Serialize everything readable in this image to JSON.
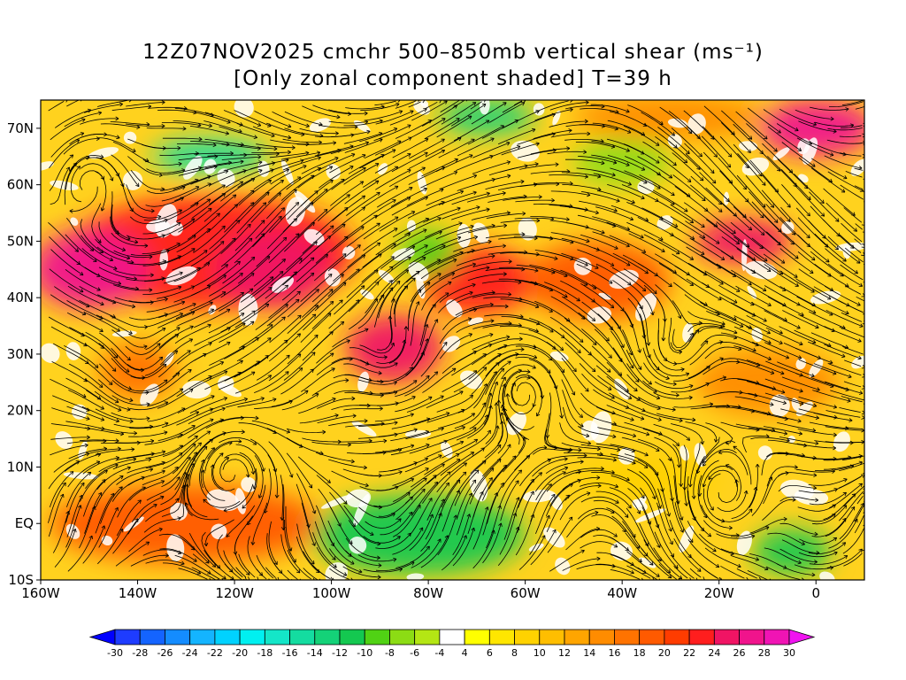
{
  "title": {
    "line1": "12Z07NOV2025 cmchr 500–850mb vertical shear (ms⁻¹)",
    "line2": "[Only zonal component shaded] T=39 h"
  },
  "map": {
    "lon_range": [
      -160,
      10
    ],
    "lat_range": [
      -10,
      75
    ],
    "x_ticks": [
      {
        "lon": -160,
        "label": "160W"
      },
      {
        "lon": -140,
        "label": "140W"
      },
      {
        "lon": -120,
        "label": "120W"
      },
      {
        "lon": -100,
        "label": "100W"
      },
      {
        "lon": -80,
        "label": "80W"
      },
      {
        "lon": -60,
        "label": "60W"
      },
      {
        "lon": -40,
        "label": "40W"
      },
      {
        "lon": -20,
        "label": "20W"
      },
      {
        "lon": 0,
        "label": "0"
      }
    ],
    "y_ticks": [
      {
        "lat": -10,
        "label": "10S"
      },
      {
        "lat": 0,
        "label": "EQ"
      },
      {
        "lat": 10,
        "label": "10N"
      },
      {
        "lat": 20,
        "label": "20N"
      },
      {
        "lat": 30,
        "label": "30N"
      },
      {
        "lat": 40,
        "label": "40N"
      },
      {
        "lat": 50,
        "label": "50N"
      },
      {
        "lat": 60,
        "label": "60N"
      },
      {
        "lat": 70,
        "label": "70N"
      }
    ]
  },
  "shading_regions": [
    {
      "lon": -125,
      "lat": 48,
      "rlon": 30,
      "rlat": 10,
      "value": 24
    },
    {
      "lon": -150,
      "lat": 45,
      "rlon": 12,
      "rlat": 7,
      "value": 28
    },
    {
      "lon": -112,
      "lat": 45,
      "rlon": 12,
      "rlat": 7,
      "value": 26
    },
    {
      "lon": -87,
      "lat": 31,
      "rlon": 10,
      "rlat": 6,
      "value": 26
    },
    {
      "lon": -70,
      "lat": 43,
      "rlon": 12,
      "rlat": 6,
      "value": 24
    },
    {
      "lon": -45,
      "lat": 43,
      "rlon": 15,
      "rlat": 7,
      "value": 20
    },
    {
      "lon": -15,
      "lat": 50,
      "rlon": 10,
      "rlat": 4,
      "value": 26
    },
    {
      "lon": 0,
      "lat": 70,
      "rlon": 12,
      "rlat": 5,
      "value": 28
    },
    {
      "lon": -30,
      "lat": 72,
      "rlon": 20,
      "rlat": 4,
      "value": 16
    },
    {
      "lon": -140,
      "lat": 27,
      "rlon": 8,
      "rlat": 5,
      "value": 18
    },
    {
      "lon": -130,
      "lat": 0,
      "rlon": 28,
      "rlat": 7,
      "value": 20
    },
    {
      "lon": -10,
      "lat": 25,
      "rlon": 15,
      "rlat": 6,
      "value": 16
    },
    {
      "lon": -35,
      "lat": 8,
      "rlon": 15,
      "rlat": 4,
      "value": 10
    },
    {
      "lon": -82,
      "lat": -2,
      "rlon": 22,
      "rlat": 7,
      "value": -10
    },
    {
      "lon": -5,
      "lat": -5,
      "rlon": 8,
      "rlat": 4,
      "value": -10
    },
    {
      "lon": -125,
      "lat": 65,
      "rlon": 12,
      "rlat": 3,
      "value": -14
    },
    {
      "lon": -68,
      "lat": 72,
      "rlon": 10,
      "rlat": 3,
      "value": -12
    },
    {
      "lon": -80,
      "lat": 48,
      "rlon": 6,
      "rlat": 4,
      "value": -8
    },
    {
      "lon": -40,
      "lat": 64,
      "rlon": 10,
      "rlat": 4,
      "value": -6
    }
  ],
  "colorbar": {
    "labels": [
      "-30",
      "-28",
      "-26",
      "-24",
      "-22",
      "-20",
      "-18",
      "-16",
      "-14",
      "-12",
      "-10",
      "-8",
      "-6",
      "-4",
      "4",
      "6",
      "8",
      "10",
      "12",
      "14",
      "16",
      "18",
      "20",
      "22",
      "24",
      "26",
      "28",
      "30"
    ],
    "colors": [
      "#1e3cff",
      "#1464ff",
      "#148cff",
      "#14b4ff",
      "#00d2ff",
      "#00f0f0",
      "#14e6c8",
      "#14dca0",
      "#14d278",
      "#14c850",
      "#50d214",
      "#8cdc14",
      "#b4e614",
      "#ffffff",
      "#ffff00",
      "#ffe600",
      "#ffd200",
      "#ffbe00",
      "#ffa500",
      "#ff8c00",
      "#ff7300",
      "#ff5a00",
      "#ff3c00",
      "#ff1e1e",
      "#f01464",
      "#f0148c",
      "#f014b4"
    ],
    "under_color": "#0000ff",
    "over_color": "#f014f0"
  }
}
